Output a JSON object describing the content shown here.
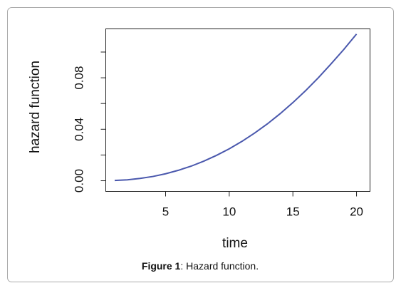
{
  "chart_data": {
    "type": "line",
    "xlabel": "time",
    "ylabel": "hazard function",
    "x": [
      1,
      2,
      3,
      4,
      5,
      6,
      7,
      8,
      9,
      10,
      11,
      12,
      13,
      14,
      15,
      16,
      17,
      18,
      19,
      20
    ],
    "series": [
      {
        "color": "#4a58ad",
        "values": [
          0.0002,
          0.0007,
          0.0018,
          0.0033,
          0.0054,
          0.0081,
          0.0113,
          0.0152,
          0.0197,
          0.0248,
          0.0306,
          0.0371,
          0.0442,
          0.0521,
          0.0607,
          0.07,
          0.08,
          0.0908,
          0.102,
          0.114
        ]
      }
    ],
    "xlim": [
      0.3,
      21.06
    ],
    "xticks": [
      5,
      10,
      15,
      20
    ],
    "ylim": [
      -0.0083,
      0.118
    ],
    "yticks": [
      {
        "value": 0,
        "label": "0.00"
      },
      {
        "value": 0.02,
        "label": null
      },
      {
        "value": 0.04,
        "label": "0.04"
      },
      {
        "value": 0.06,
        "label": null
      },
      {
        "value": 0.08,
        "label": "0.08"
      },
      {
        "value": 0.1,
        "label": null
      }
    ],
    "grid": false
  },
  "caption": {
    "label": "Figure 1",
    "text": ": Hazard function."
  }
}
